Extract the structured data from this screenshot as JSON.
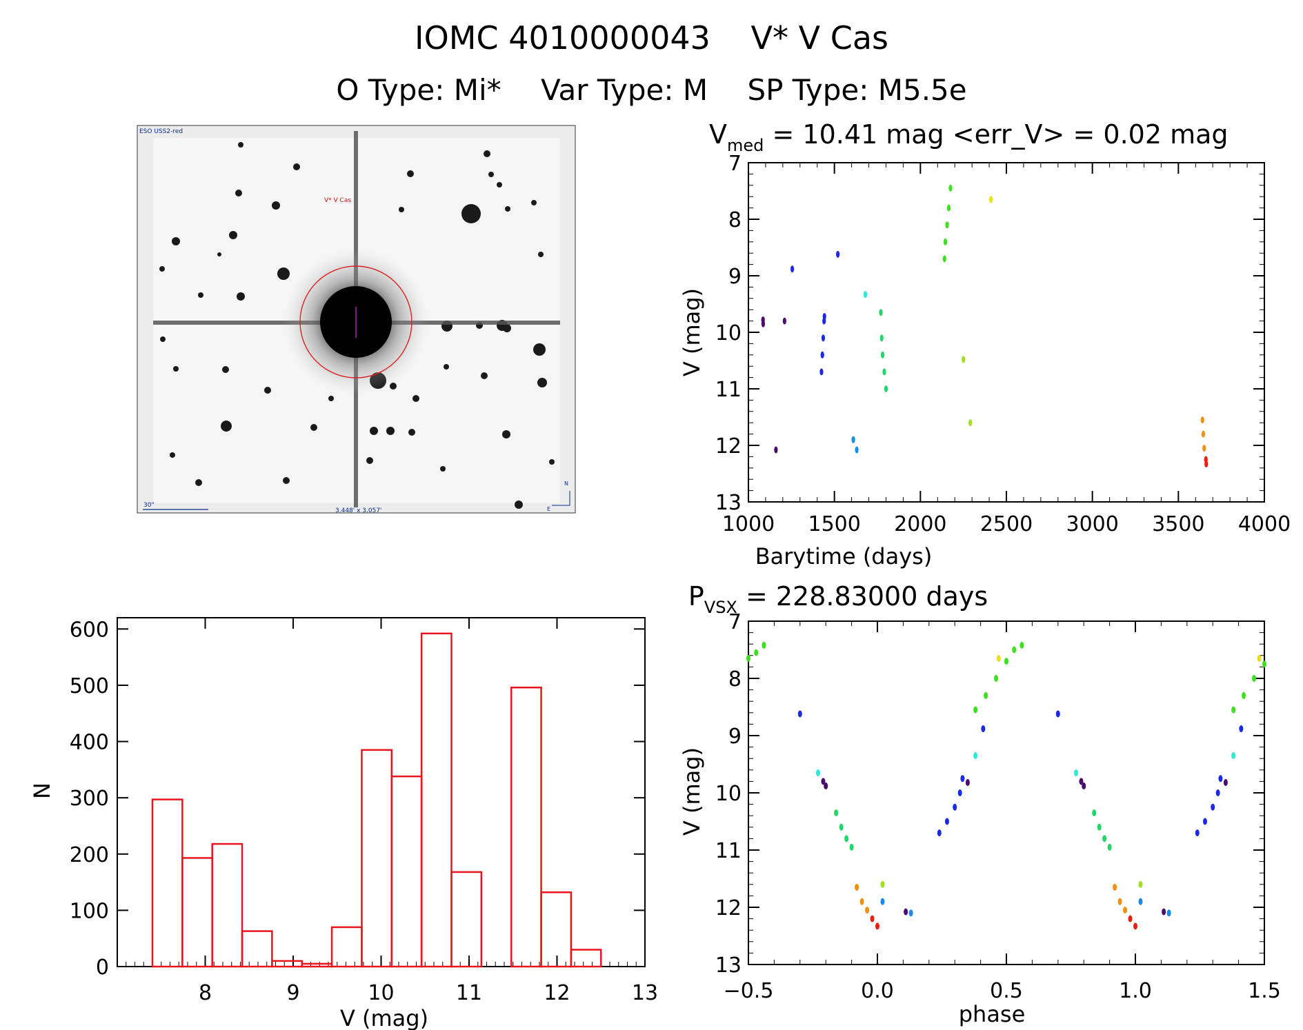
{
  "header": {
    "id": "IOMC 4010000043",
    "name": "V* V Cas",
    "otype": "O Type: Mi*",
    "vartype": "Var Type: M",
    "sptype": "SP Type: M5.5e"
  },
  "image_panel": {
    "survey_label": "ESO USS2-red",
    "target_label": "V* V Cas",
    "scale_label": "30\"",
    "fov_label": "3.448' x 3.057'",
    "compass_n": "N",
    "compass_e": "E"
  },
  "chart_data": [
    {
      "type": "scatter",
      "title_main": "V",
      "title_sub": "med",
      "title_rest": " = 10.41 mag <err_V> = 0.02 mag",
      "xlabel": "Barytime (days)",
      "ylabel": "V (mag)",
      "xlim": [
        1000,
        4000
      ],
      "ylim": [
        13,
        7
      ],
      "xticks": [
        1000,
        1500,
        2000,
        2500,
        3000,
        3500,
        4000
      ],
      "yticks": [
        7,
        8,
        9,
        10,
        11,
        12,
        13
      ],
      "series": [
        {
          "color": "#4a0a6e",
          "points": [
            [
              1085,
              9.78
            ],
            [
              1086,
              9.85
            ],
            [
              1210,
              9.8
            ],
            [
              1160,
              12.08
            ]
          ]
        },
        {
          "color": "#1a2ae8",
          "points": [
            [
              1255,
              8.88
            ],
            [
              1425,
              10.7
            ],
            [
              1430,
              10.4
            ],
            [
              1435,
              10.1
            ],
            [
              1440,
              9.8
            ],
            [
              1442,
              9.72
            ],
            [
              1520,
              8.62
            ]
          ]
        },
        {
          "color": "#1a8be8",
          "points": [
            [
              1610,
              11.9
            ],
            [
              1630,
              12.08
            ]
          ]
        },
        {
          "color": "#30e8d8",
          "points": [
            [
              1680,
              9.33
            ]
          ]
        },
        {
          "color": "#22d66a",
          "points": [
            [
              1770,
              9.65
            ],
            [
              1775,
              10.1
            ],
            [
              1780,
              10.4
            ],
            [
              1790,
              10.7
            ],
            [
              1800,
              11.0
            ]
          ]
        },
        {
          "color": "#3ce01e",
          "points": [
            [
              2140,
              8.7
            ],
            [
              2145,
              8.4
            ],
            [
              2155,
              8.1
            ],
            [
              2165,
              7.8
            ],
            [
              2175,
              7.45
            ]
          ]
        },
        {
          "color": "#a0e020",
          "points": [
            [
              2250,
              10.48
            ],
            [
              2290,
              11.6
            ]
          ]
        },
        {
          "color": "#e8e018",
          "points": [
            [
              2410,
              7.65
            ]
          ]
        },
        {
          "color": "#f09010",
          "points": [
            [
              3640,
              11.55
            ],
            [
              3645,
              11.8
            ],
            [
              3650,
              12.05
            ]
          ]
        },
        {
          "color": "#e82010",
          "points": [
            [
              3660,
              12.25
            ],
            [
              3662,
              12.33
            ]
          ]
        }
      ]
    },
    {
      "type": "bar",
      "title": "",
      "xlabel": "V (mag)",
      "ylabel": "N",
      "xlim": [
        7.0,
        13.0
      ],
      "ylim": [
        0,
        620
      ],
      "xticks": [
        8,
        9,
        10,
        11,
        12,
        13
      ],
      "yticks": [
        0,
        100,
        200,
        300,
        400,
        500,
        600
      ],
      "bin_edges": [
        7.4,
        7.74,
        8.08,
        8.42,
        8.76,
        9.1,
        9.44,
        9.78,
        10.12,
        10.46,
        10.8,
        11.14,
        11.48,
        11.82,
        12.16,
        12.5
      ],
      "values": [
        297,
        193,
        218,
        63,
        10,
        5,
        70,
        385,
        338,
        592,
        168,
        0,
        496,
        132,
        30
      ],
      "color": "#e8141e"
    },
    {
      "type": "scatter",
      "title_main": "P",
      "title_sub": "VSX",
      "title_rest": " = 228.83000 days",
      "xlabel": "phase",
      "ylabel": "V (mag)",
      "xlim": [
        -0.5,
        1.5
      ],
      "ylim": [
        13,
        7
      ],
      "xticks": [
        -0.5,
        0.0,
        0.5,
        1.0,
        1.5
      ],
      "xtick_labels": [
        "−0.5",
        "0.0",
        "0.5",
        "1.0",
        "1.5"
      ],
      "yticks": [
        7,
        8,
        9,
        10,
        11,
        12,
        13
      ],
      "series": [
        {
          "color": "#3ce01e",
          "points": [
            [
              -0.5,
              7.65
            ],
            [
              -0.47,
              7.55
            ],
            [
              -0.44,
              7.42
            ],
            [
              0.38,
              8.55
            ],
            [
              0.42,
              8.3
            ],
            [
              0.46,
              8.0
            ],
            [
              0.5,
              7.7
            ],
            [
              0.53,
              7.5
            ],
            [
              0.56,
              7.42
            ],
            [
              1.38,
              8.55
            ],
            [
              1.42,
              8.3
            ],
            [
              1.46,
              8.0
            ],
            [
              1.5,
              7.75
            ]
          ]
        },
        {
          "color": "#22d66a",
          "points": [
            [
              -0.16,
              10.35
            ],
            [
              -0.14,
              10.6
            ],
            [
              -0.12,
              10.8
            ],
            [
              -0.1,
              10.95
            ],
            [
              0.84,
              10.35
            ],
            [
              0.86,
              10.6
            ],
            [
              0.88,
              10.8
            ],
            [
              0.9,
              10.95
            ]
          ]
        },
        {
          "color": "#30e8d8",
          "points": [
            [
              -0.23,
              9.65
            ],
            [
              0.77,
              9.65
            ],
            [
              0.38,
              9.35
            ],
            [
              1.38,
              9.35
            ]
          ]
        },
        {
          "color": "#4a0a6e",
          "points": [
            [
              -0.21,
              9.8
            ],
            [
              -0.2,
              9.88
            ],
            [
              0.35,
              9.82
            ],
            [
              0.79,
              9.8
            ],
            [
              0.8,
              9.88
            ],
            [
              1.35,
              9.82
            ],
            [
              0.11,
              12.08
            ],
            [
              1.11,
              12.08
            ]
          ]
        },
        {
          "color": "#1a2ae8",
          "points": [
            [
              0.24,
              10.7
            ],
            [
              0.27,
              10.5
            ],
            [
              0.3,
              10.25
            ],
            [
              0.32,
              10.0
            ],
            [
              0.33,
              9.75
            ],
            [
              1.24,
              10.7
            ],
            [
              1.27,
              10.5
            ],
            [
              1.3,
              10.25
            ],
            [
              1.32,
              10.0
            ],
            [
              1.33,
              9.75
            ],
            [
              -0.3,
              8.62
            ],
            [
              0.7,
              8.62
            ],
            [
              0.41,
              8.88
            ],
            [
              1.41,
              8.88
            ]
          ]
        },
        {
          "color": "#1a8be8",
          "points": [
            [
              0.02,
              11.9
            ],
            [
              0.13,
              12.1
            ],
            [
              1.02,
              11.9
            ],
            [
              1.13,
              12.1
            ]
          ]
        },
        {
          "color": "#a0e020",
          "points": [
            [
              0.02,
              11.6
            ],
            [
              1.02,
              11.6
            ]
          ]
        },
        {
          "color": "#e8e018",
          "points": [
            [
              0.47,
              7.65
            ],
            [
              1.48,
              7.65
            ]
          ]
        },
        {
          "color": "#f09010",
          "points": [
            [
              -0.08,
              11.65
            ],
            [
              -0.06,
              11.9
            ],
            [
              -0.04,
              12.05
            ],
            [
              0.92,
              11.65
            ],
            [
              0.94,
              11.9
            ],
            [
              0.96,
              12.05
            ]
          ]
        },
        {
          "color": "#e82010",
          "points": [
            [
              -0.02,
              12.2
            ],
            [
              0.0,
              12.33
            ],
            [
              0.98,
              12.2
            ],
            [
              1.0,
              12.33
            ]
          ]
        }
      ]
    }
  ]
}
